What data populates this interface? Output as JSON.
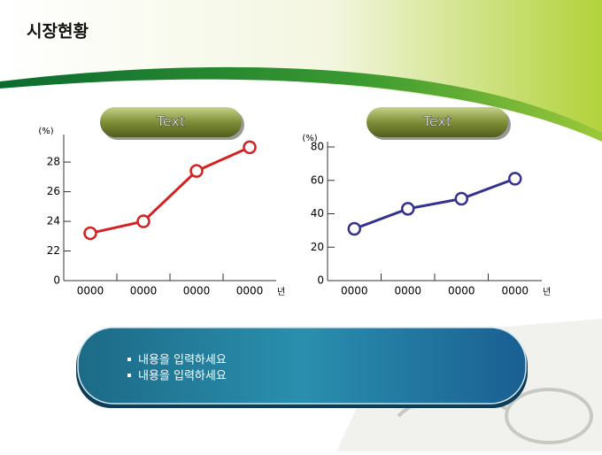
{
  "header": {
    "title": "시장현황"
  },
  "chart_data": [
    {
      "type": "line",
      "title": "Text",
      "y_label": "(%)",
      "x_unit": "년",
      "categories": [
        "0000",
        "0000",
        "0000",
        "0000"
      ],
      "series": [
        {
          "color": "#d42222",
          "values": [
            23.2,
            24.0,
            27.4,
            29.0
          ]
        }
      ],
      "ylim": [
        20,
        29.5
      ],
      "yticks": [
        {
          "value": 20,
          "label": "0"
        },
        22,
        24,
        26,
        28
      ]
    },
    {
      "type": "line",
      "title": "Text",
      "y_label": "(%)",
      "x_unit": "년",
      "categories": [
        "0000",
        "0000",
        "0000",
        "0000"
      ],
      "series": [
        {
          "color": "#33338f",
          "values": [
            31,
            43,
            49,
            61
          ]
        }
      ],
      "ylim": [
        0,
        80
      ],
      "yticks": [
        0,
        20,
        40,
        60,
        80
      ]
    }
  ],
  "textbox": {
    "items": [
      "내용을 입력하세요",
      "내용을 입력하세요"
    ]
  }
}
